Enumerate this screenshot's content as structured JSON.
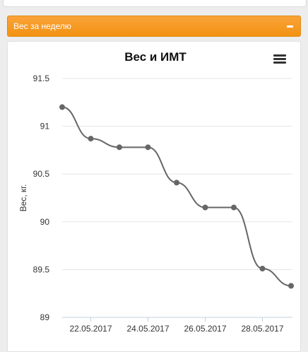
{
  "panel": {
    "title": "Вес за неделю"
  },
  "chart_data": {
    "type": "line",
    "title": "Вес и ИМТ",
    "ylabel": "Вес, кг.",
    "xlabel": "",
    "ylim": [
      89,
      91.5
    ],
    "yticks": [
      "91.5",
      "91",
      "90.5",
      "90",
      "89.5",
      "89"
    ],
    "xtick_labels": [
      "22.05.2017",
      "24.05.2017",
      "26.05.2017",
      "28.05.2017"
    ],
    "x": [
      "21.05.2017",
      "22.05.2017",
      "23.05.2017",
      "24.05.2017",
      "25.05.2017",
      "26.05.2017",
      "27.05.2017",
      "28.05.2017",
      "29.05.2017"
    ],
    "series": [
      {
        "values": [
          91.2,
          90.87,
          90.78,
          90.78,
          90.41,
          90.15,
          90.15,
          89.51,
          89.33
        ]
      }
    ],
    "grid": true,
    "line_color": "#666666"
  }
}
